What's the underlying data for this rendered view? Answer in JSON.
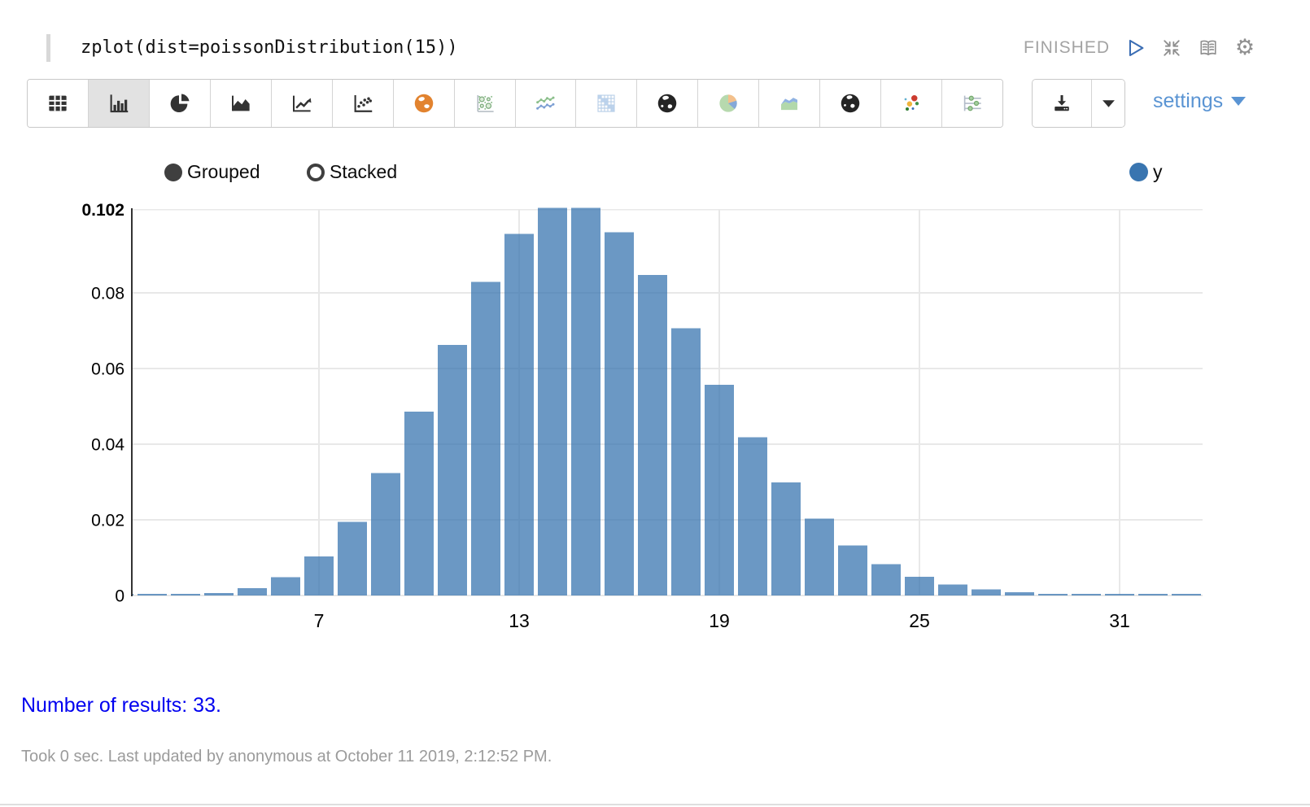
{
  "paragraph": {
    "code": "zplot(dist=poissonDistribution(15))",
    "status": "FINISHED"
  },
  "toolbar": {
    "chart_types": [
      "table",
      "bar-chart",
      "pie-chart",
      "area-chart",
      "line-chart",
      "scatter-plot",
      "globe-orange",
      "bubble-matrix",
      "multi-line-chart",
      "heatmap",
      "globe-dark",
      "pie-pastel",
      "area-pastel",
      "globe-dark-2",
      "scatter-color",
      "range-slider"
    ],
    "selected": "bar-chart",
    "settings_label": "settings"
  },
  "chart_controls": {
    "grouped_label": "Grouped",
    "stacked_label": "Stacked",
    "selected_mode": "Grouped"
  },
  "chart_data": {
    "type": "bar",
    "title": "",
    "xlabel": "",
    "ylabel": "",
    "series_name": "y",
    "x": [
      1,
      2,
      3,
      4,
      5,
      6,
      7,
      8,
      9,
      10,
      11,
      12,
      13,
      14,
      15,
      16,
      17,
      18,
      19,
      20,
      21,
      22,
      23,
      24,
      25,
      26,
      27,
      28,
      29,
      30,
      31,
      32,
      33
    ],
    "values": [
      4.6e-06,
      3.44e-05,
      0.000172,
      0.000645,
      0.001936,
      0.004839,
      0.01037,
      0.019444,
      0.032407,
      0.048611,
      0.066288,
      0.082859,
      0.095607,
      0.102436,
      0.102436,
      0.096033,
      0.084735,
      0.070613,
      0.055747,
      0.04181,
      0.029865,
      0.020362,
      0.013279,
      0.0083,
      0.00498,
      0.002873,
      0.001596,
      0.000855,
      0.000442,
      0.000221,
      0.000107,
      5e-05,
      2.28e-05
    ],
    "x_ticks": [
      7,
      13,
      19,
      25,
      31
    ],
    "y_ticks": [
      0,
      0.02,
      0.04,
      0.06,
      0.08,
      0.102
    ],
    "y_tick_labels": [
      "0",
      "0.02",
      "0.04",
      "0.06",
      "0.08",
      "0.102"
    ],
    "ylim": [
      0,
      0.102436
    ],
    "grid": true,
    "legend_position": "top-right",
    "bar_color": "#3975b0",
    "bar_opacity": 0.75,
    "legend_color": "#3975b0",
    "grid_color": "#e8e8e8",
    "axis_color": "#333333"
  },
  "results": {
    "summary": "Number of results: 33."
  },
  "footer": {
    "status_line": "Took 0 sec. Last updated by anonymous at October 11 2019, 2:12:52 PM."
  }
}
